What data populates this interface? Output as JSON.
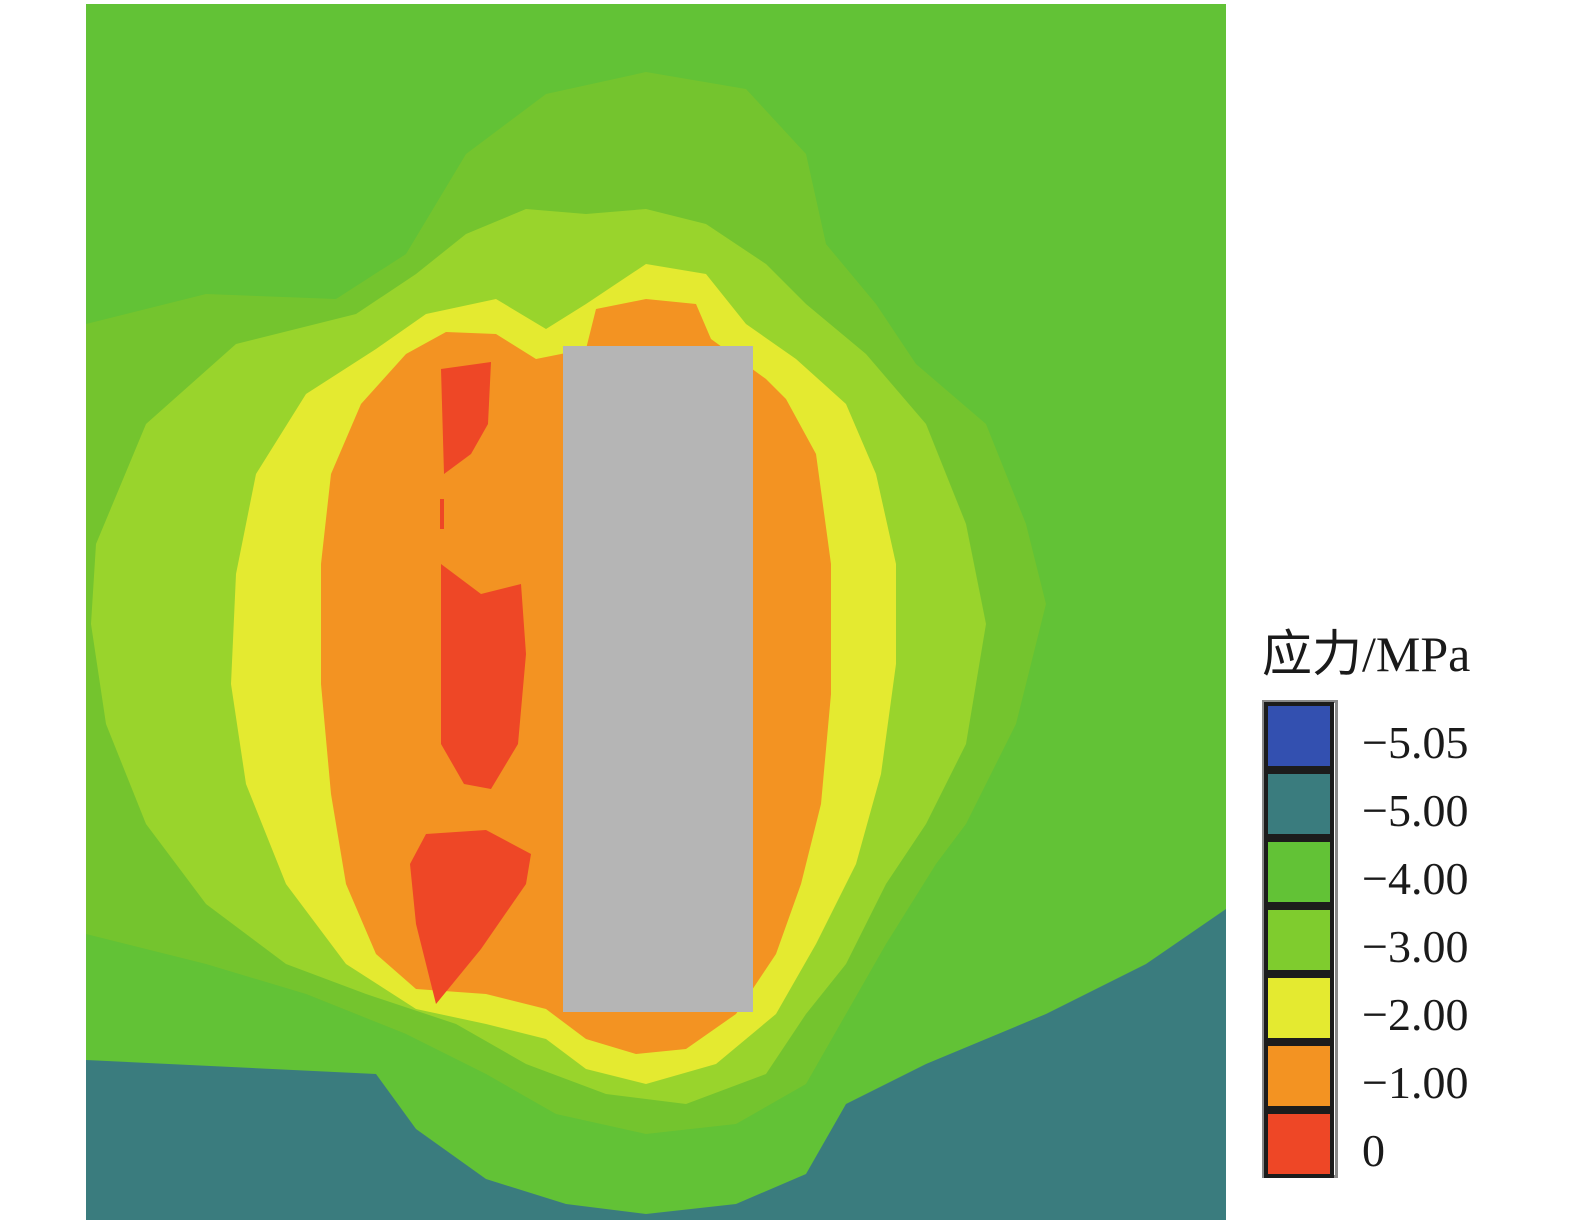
{
  "chart_data": {
    "type": "heatmap",
    "legend": {
      "title": "应力/MPa",
      "placement": "right",
      "levels": [
        {
          "label": "−5.05",
          "value": -5.05,
          "color": "#3350b0"
        },
        {
          "label": "−5.00",
          "value": -5.0,
          "color": "#3a7c7e"
        },
        {
          "label": "−4.00",
          "value": -4.0,
          "color": "#62c236"
        },
        {
          "label": "−3.00",
          "value": -3.0,
          "color": "#7fcc2e"
        },
        {
          "label": "−2.00",
          "value": -2.0,
          "color": "#e4ea30"
        },
        {
          "label": "−1.00",
          "value": -1.0,
          "color": "#f39322"
        },
        {
          "label": "0",
          "value": 0,
          "color": "#ee4726"
        }
      ]
    },
    "zones": [
      {
        "name": "band-3",
        "level": -3.0,
        "color": "#74c42e"
      },
      {
        "name": "band-2.5",
        "level": -2.5,
        "color": "#99d42c"
      },
      {
        "name": "band-2",
        "level": -2.0,
        "color": "#e4ea30"
      },
      {
        "name": "band-1",
        "level": -1.0,
        "color": "#f39322"
      },
      {
        "name": "band-0",
        "level": 0,
        "color": "#ee4726"
      }
    ],
    "excavation_color": "#b5b5b5"
  }
}
